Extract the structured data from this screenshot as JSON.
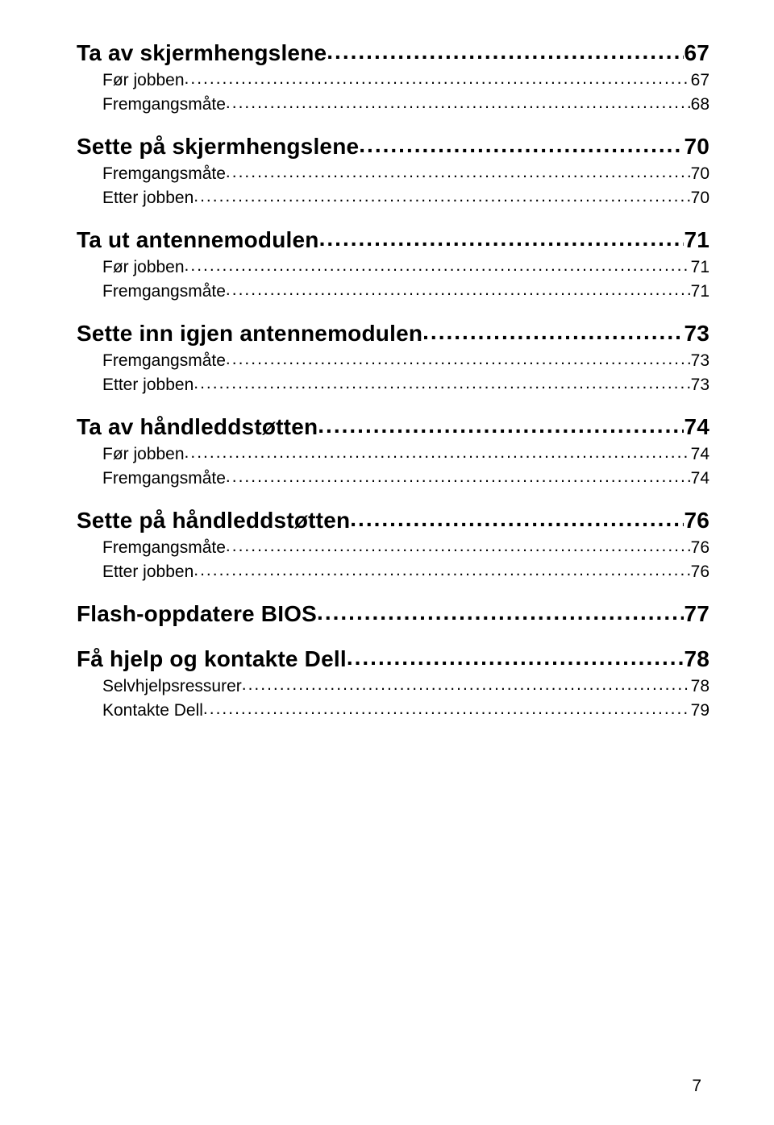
{
  "page_number": "7",
  "entries": [
    {
      "level": 1,
      "label": "Ta av skjermhengslene",
      "page": "67",
      "first": true
    },
    {
      "level": 2,
      "label": "Før jobben",
      "page": "67"
    },
    {
      "level": 2,
      "label": "Fremgangsmåte",
      "page": "68"
    },
    {
      "level": 1,
      "label": "Sette på skjermhengslene",
      "page": "70"
    },
    {
      "level": 2,
      "label": "Fremgangsmåte",
      "page": "70"
    },
    {
      "level": 2,
      "label": "Etter jobben",
      "page": "70"
    },
    {
      "level": 1,
      "label": "Ta ut antennemodulen",
      "page": "71"
    },
    {
      "level": 2,
      "label": "Før jobben",
      "page": "71"
    },
    {
      "level": 2,
      "label": "Fremgangsmåte",
      "page": "71"
    },
    {
      "level": 1,
      "label": "Sette inn igjen antennemodulen",
      "page": "73"
    },
    {
      "level": 2,
      "label": "Fremgangsmåte",
      "page": "73"
    },
    {
      "level": 2,
      "label": "Etter jobben",
      "page": "73"
    },
    {
      "level": 1,
      "label": "Ta av håndleddstøtten",
      "page": "74"
    },
    {
      "level": 2,
      "label": "Før jobben",
      "page": "74"
    },
    {
      "level": 2,
      "label": "Fremgangsmåte",
      "page": "74"
    },
    {
      "level": 1,
      "label": "Sette på håndleddstøtten",
      "page": "76"
    },
    {
      "level": 2,
      "label": "Fremgangsmåte",
      "page": "76"
    },
    {
      "level": 2,
      "label": "Etter jobben",
      "page": "76"
    },
    {
      "level": 1,
      "label": "Flash-oppdatere BIOS",
      "page": "77"
    },
    {
      "level": 1,
      "label": "Få hjelp og kontakte Dell",
      "page": "78"
    },
    {
      "level": 2,
      "label": "Selvhjelpsressurer",
      "page": "78"
    },
    {
      "level": 2,
      "label": "Kontakte Dell",
      "page": "79"
    }
  ]
}
